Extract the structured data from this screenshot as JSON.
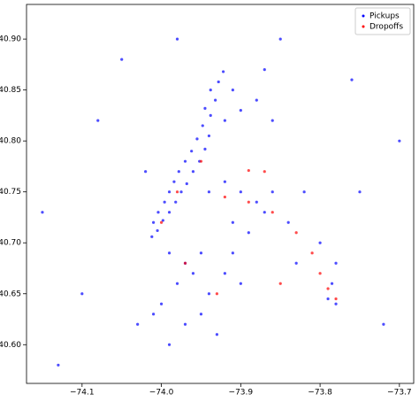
{
  "chart_data": {
    "type": "scatter",
    "xlim": [
      -74.17,
      -73.682
    ],
    "ylim": [
      40.562,
      40.934
    ],
    "xticks": [
      {
        "value": -74.1,
        "label": "−74.1"
      },
      {
        "value": -74.0,
        "label": "−74.0"
      },
      {
        "value": -73.9,
        "label": "−73.9"
      },
      {
        "value": -73.8,
        "label": "−73.8"
      },
      {
        "value": -73.7,
        "label": "−73.7"
      }
    ],
    "yticks": [
      {
        "value": 40.6,
        "label": "40.60"
      },
      40.65,
      {
        "value": 40.7,
        "label": "40.70"
      },
      40.75,
      {
        "value": 40.8,
        "label": "40.80"
      },
      40.85,
      {
        "value": 40.9,
        "label": "40.90"
      }
    ],
    "legend": "upper right",
    "series": [
      {
        "name": "Pickups",
        "color": "#0000ff",
        "x": [
          -74.012,
          -74.005,
          -74.01,
          -73.998,
          -74.004,
          -73.99,
          -73.996,
          -73.982,
          -73.99,
          -73.975,
          -73.984,
          -73.968,
          -73.978,
          -73.96,
          -73.97,
          -73.952,
          -73.962,
          -73.945,
          -73.955,
          -73.94,
          -73.948,
          -73.938,
          -73.945,
          -73.932,
          -73.938,
          -73.928,
          -73.922,
          -73.99,
          -73.97,
          -73.95,
          -73.96,
          -73.98,
          -73.94,
          -73.92,
          -73.95,
          -74.0,
          -74.01,
          -73.97,
          -73.99,
          -73.93,
          -74.03,
          -73.9,
          -73.91,
          -73.94,
          -73.92,
          -73.9,
          -73.88,
          -73.86,
          -73.91,
          -73.89,
          -73.87,
          -73.84,
          -73.82,
          -73.8,
          -73.78,
          -73.83,
          -73.92,
          -73.9,
          -73.88,
          -73.91,
          -73.87,
          -73.86,
          -73.79,
          -73.78,
          -73.785,
          -74.13,
          -74.15,
          -74.08,
          -74.05,
          -73.85,
          -73.7,
          -73.72,
          -74.1,
          -73.75,
          -74.02,
          -73.98,
          -73.76
        ],
        "values": [
          40.706,
          40.712,
          40.72,
          40.722,
          40.73,
          40.73,
          40.74,
          40.74,
          40.75,
          40.75,
          40.76,
          40.758,
          40.77,
          40.77,
          40.78,
          40.78,
          40.79,
          40.792,
          40.802,
          40.805,
          40.815,
          40.825,
          40.832,
          40.84,
          40.85,
          40.858,
          40.868,
          40.69,
          40.68,
          40.69,
          40.67,
          40.66,
          40.65,
          40.67,
          40.63,
          40.64,
          40.63,
          40.62,
          40.6,
          40.61,
          40.62,
          40.66,
          40.69,
          40.75,
          40.76,
          40.75,
          40.74,
          40.75,
          40.72,
          40.71,
          40.73,
          40.72,
          40.75,
          40.7,
          40.68,
          40.68,
          40.82,
          40.83,
          40.84,
          40.85,
          40.87,
          40.82,
          40.645,
          40.64,
          40.66,
          40.58,
          40.73,
          40.82,
          40.88,
          40.9,
          40.8,
          40.62,
          40.65,
          40.75,
          40.77,
          40.9,
          40.86
        ]
      },
      {
        "name": "Dropoffs",
        "color": "#ff0000",
        "x": [
          -73.78,
          -73.79,
          -73.8,
          -73.81,
          -73.83,
          -73.86,
          -73.89,
          -73.92,
          -73.87,
          -73.89,
          -73.98,
          -73.97,
          -74.0,
          -73.95,
          -73.93,
          -73.85
        ],
        "values": [
          40.645,
          40.655,
          40.67,
          40.69,
          40.71,
          40.73,
          40.74,
          40.745,
          40.77,
          40.771,
          40.75,
          40.68,
          40.72,
          40.78,
          40.65,
          40.66
        ]
      }
    ]
  }
}
